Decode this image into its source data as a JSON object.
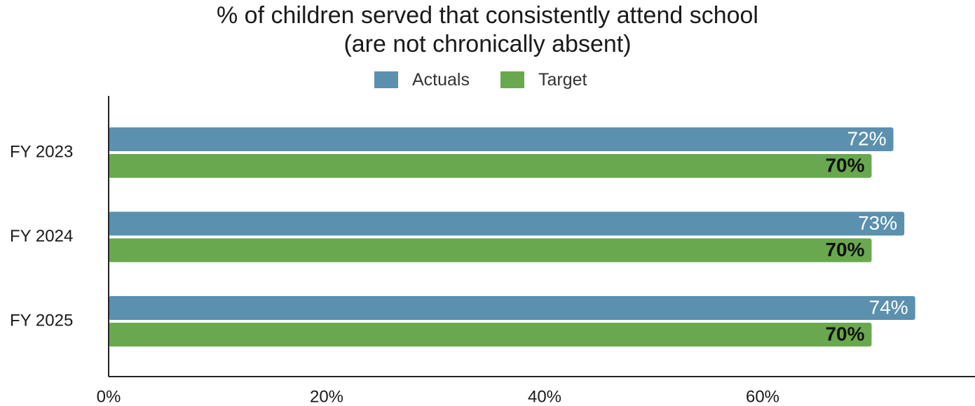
{
  "chart_data": {
    "type": "bar",
    "orientation": "horizontal",
    "title_lines": [
      "% of children served that consistently attend school",
      "(are not chronically absent)"
    ],
    "categories": [
      "FY 2023",
      "FY 2024",
      "FY 2025"
    ],
    "series": [
      {
        "name": "Actuals",
        "color": "#5b90ae",
        "values": [
          72,
          73,
          74
        ],
        "labels": [
          "72%",
          "73%",
          "74%"
        ],
        "label_color": "#ffffff",
        "label_bold": false
      },
      {
        "name": "Target",
        "color": "#69a84f",
        "values": [
          70,
          70,
          70
        ],
        "labels": [
          "70%",
          "70%",
          "70%"
        ],
        "label_color": "#111111",
        "label_bold": true
      }
    ],
    "x_ticks": [
      0,
      20,
      40,
      60
    ],
    "x_tick_labels": [
      "0%",
      "20%",
      "40%",
      "60%"
    ],
    "xlim": [
      0,
      80
    ],
    "legend_position": "top-center",
    "grid": false
  }
}
